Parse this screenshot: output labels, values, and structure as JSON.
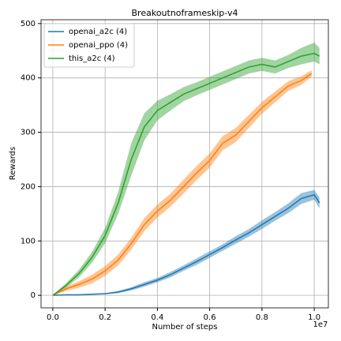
{
  "chart_data": {
    "type": "line",
    "title": "Breakoutnoframeskip-v4",
    "x_label": "Number of steps",
    "x_offset_label": "1e7",
    "y_label": "Rewards",
    "xlim": [
      -0.045,
      1.054
    ],
    "ylim": [
      -23,
      507
    ],
    "xticks": [
      {
        "value": 0,
        "label": "0.0"
      },
      0.2,
      0.4,
      0.6,
      0.8,
      {
        "value": 1,
        "label": "1.0"
      }
    ],
    "yticks": [
      0,
      100,
      200,
      300,
      400,
      500
    ],
    "grid": true,
    "legend": "upper left",
    "series": [
      {
        "name": "openai_a2c (4)",
        "color": "#1f77b4",
        "x": [
          0,
          0.05,
          0.1,
          0.15,
          0.2,
          0.25,
          0.3,
          0.35,
          0.4,
          0.45,
          0.5,
          0.55,
          0.6,
          0.65,
          0.7,
          0.75,
          0.8,
          0.85,
          0.9,
          0.95,
          1.0,
          1.02
        ],
        "values": [
          0,
          1,
          1,
          2,
          3,
          6,
          12,
          20,
          28,
          38,
          50,
          62,
          75,
          88,
          102,
          115,
          130,
          145,
          160,
          178,
          185,
          170
        ],
        "lower": [
          0,
          0,
          0,
          1,
          2,
          4,
          9,
          16,
          24,
          33,
          45,
          56,
          69,
          82,
          95,
          108,
          122,
          137,
          151,
          168,
          176,
          160
        ],
        "upper": [
          0,
          2,
          2,
          3,
          4,
          8,
          15,
          24,
          32,
          43,
          55,
          68,
          81,
          94,
          109,
          122,
          138,
          153,
          169,
          188,
          194,
          180
        ]
      },
      {
        "name": "openai_ppo (4)",
        "color": "#ff7f0e",
        "x": [
          0,
          0.05,
          0.1,
          0.15,
          0.2,
          0.25,
          0.3,
          0.35,
          0.4,
          0.45,
          0.5,
          0.55,
          0.6,
          0.65,
          0.7,
          0.75,
          0.8,
          0.85,
          0.9,
          0.95,
          0.99
        ],
        "values": [
          0,
          12,
          20,
          30,
          45,
          65,
          95,
          130,
          155,
          175,
          200,
          225,
          248,
          280,
          295,
          320,
          345,
          365,
          385,
          395,
          408
        ],
        "lower": [
          0,
          8,
          14,
          22,
          36,
          55,
          84,
          118,
          143,
          163,
          187,
          212,
          235,
          267,
          282,
          308,
          334,
          355,
          376,
          387,
          402
        ],
        "upper": [
          0,
          16,
          26,
          38,
          54,
          75,
          106,
          142,
          167,
          187,
          213,
          238,
          261,
          293,
          308,
          332,
          356,
          375,
          394,
          403,
          414
        ]
      },
      {
        "name": "this_a2c (4)",
        "color": "#2ca02c",
        "x": [
          0,
          0.05,
          0.1,
          0.15,
          0.2,
          0.25,
          0.3,
          0.35,
          0.4,
          0.45,
          0.5,
          0.55,
          0.6,
          0.65,
          0.7,
          0.75,
          0.8,
          0.85,
          0.9,
          0.95,
          1.0,
          1.02
        ],
        "values": [
          0,
          18,
          40,
          70,
          110,
          170,
          250,
          310,
          340,
          355,
          370,
          380,
          390,
          400,
          410,
          420,
          425,
          420,
          430,
          440,
          445,
          440
        ],
        "lower": [
          0,
          14,
          33,
          60,
          96,
          150,
          220,
          285,
          322,
          340,
          357,
          368,
          378,
          388,
          398,
          408,
          413,
          408,
          418,
          425,
          430,
          425
        ],
        "upper": [
          0,
          22,
          47,
          80,
          124,
          190,
          280,
          335,
          358,
          370,
          383,
          392,
          402,
          412,
          422,
          432,
          437,
          432,
          442,
          455,
          465,
          455
        ]
      }
    ]
  }
}
